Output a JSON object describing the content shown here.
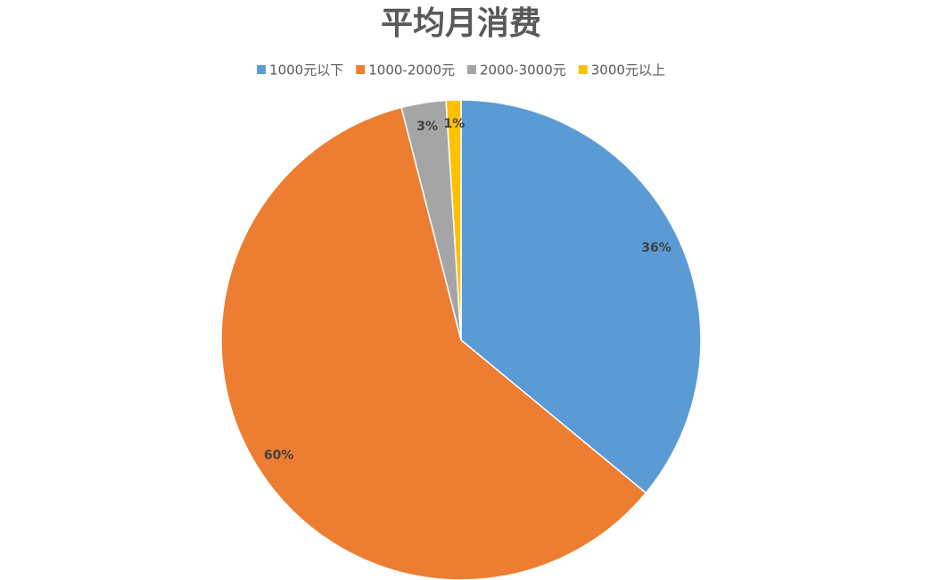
{
  "chart_data": {
    "type": "pie",
    "title": "平均月消费",
    "categories": [
      "1000元以下",
      "1000-2000元",
      "2000-3000元",
      "3000元以上"
    ],
    "values": [
      36,
      60,
      3,
      1
    ],
    "value_labels": [
      "36%",
      "60%",
      "3%",
      "1%"
    ],
    "colors": [
      "#5b9bd5",
      "#ed7d31",
      "#a5a5a5",
      "#ffc000"
    ],
    "legend": "top"
  }
}
